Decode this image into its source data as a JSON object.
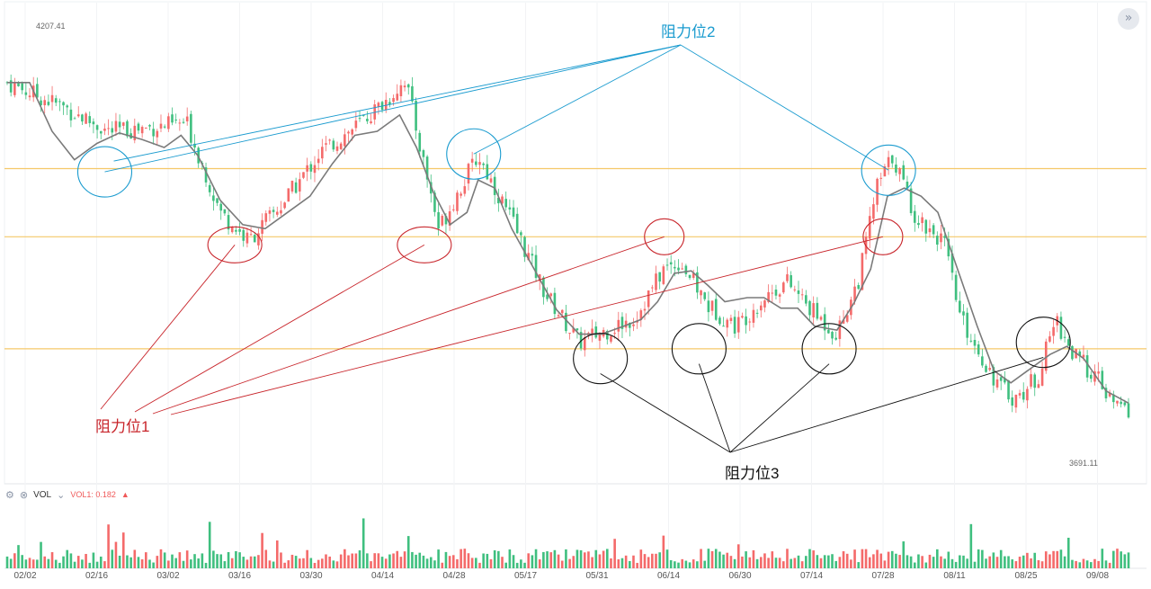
{
  "header": {
    "expand_icon": "chevrons-right-icon"
  },
  "price_labels": {
    "high": "4207.41",
    "low": "3691.11"
  },
  "volume_panel": {
    "settings_icon": "gear-icon",
    "close_icon": "close-icon",
    "title": "VOL",
    "dropdown_icon": "chevron-down-icon",
    "indicator": "VOL1: 0.182",
    "trend_icon": "triangle-up-icon"
  },
  "annotations": {
    "label1": "阻力位1",
    "label2": "阻力位2",
    "label3": "阻力位3"
  },
  "colors": {
    "up": "#f46a6a",
    "down": "#3fbf7f",
    "ma": "#7a7a7a",
    "level": "#f5c869",
    "r1": "#c8252b",
    "r2": "#1a9bcf",
    "r3": "#111111"
  },
  "chart_data": {
    "type": "candlestick",
    "ylim": [
      3691.11,
      4207.41
    ],
    "x_tick_labels": [
      "02/02",
      "02/16",
      "03/02",
      "03/16",
      "03/30",
      "04/14",
      "04/28",
      "05/17",
      "05/31",
      "06/14",
      "06/30",
      "07/14",
      "07/28",
      "08/11",
      "08/25",
      "09/08"
    ],
    "high_label": "4207.41",
    "low_label": "3691.11",
    "horizontal_levels": [
      4044,
      3960,
      3822
    ],
    "close_path": [
      [
        0,
        4150
      ],
      [
        0.05,
        4120
      ],
      [
        0.09,
        4090
      ],
      [
        0.13,
        4095
      ],
      [
        0.16,
        4100
      ],
      [
        0.19,
        3990
      ],
      [
        0.215,
        3955
      ],
      [
        0.245,
        4000
      ],
      [
        0.28,
        4065
      ],
      [
        0.31,
        4095
      ],
      [
        0.34,
        4130
      ],
      [
        0.355,
        4155
      ],
      [
        0.37,
        4060
      ],
      [
        0.385,
        3970
      ],
      [
        0.4,
        4010
      ],
      [
        0.42,
        4060
      ],
      [
        0.45,
        3980
      ],
      [
        0.48,
        3890
      ],
      [
        0.51,
        3830
      ],
      [
        0.535,
        3845
      ],
      [
        0.56,
        3860
      ],
      [
        0.585,
        3920
      ],
      [
        0.6,
        3930
      ],
      [
        0.625,
        3875
      ],
      [
        0.65,
        3850
      ],
      [
        0.675,
        3885
      ],
      [
        0.695,
        3905
      ],
      [
        0.72,
        3865
      ],
      [
        0.74,
        3840
      ],
      [
        0.76,
        3910
      ],
      [
        0.775,
        4020
      ],
      [
        0.79,
        4060
      ],
      [
        0.81,
        3985
      ],
      [
        0.835,
        3955
      ],
      [
        0.85,
        3860
      ],
      [
        0.87,
        3810
      ],
      [
        0.885,
        3775
      ],
      [
        0.9,
        3760
      ],
      [
        0.92,
        3790
      ],
      [
        0.935,
        3860
      ],
      [
        0.95,
        3815
      ],
      [
        0.97,
        3790
      ],
      [
        0.985,
        3755
      ],
      [
        1,
        3745
      ]
    ],
    "ma_path": [
      [
        0,
        4150
      ],
      [
        0.02,
        4150
      ],
      [
        0.04,
        4090
      ],
      [
        0.06,
        4055
      ],
      [
        0.08,
        4075
      ],
      [
        0.1,
        4088
      ],
      [
        0.12,
        4080
      ],
      [
        0.14,
        4070
      ],
      [
        0.155,
        4085
      ],
      [
        0.17,
        4060
      ],
      [
        0.19,
        4005
      ],
      [
        0.21,
        3975
      ],
      [
        0.23,
        3970
      ],
      [
        0.25,
        3990
      ],
      [
        0.27,
        4010
      ],
      [
        0.29,
        4050
      ],
      [
        0.31,
        4085
      ],
      [
        0.33,
        4090
      ],
      [
        0.35,
        4110
      ],
      [
        0.365,
        4070
      ],
      [
        0.38,
        4015
      ],
      [
        0.395,
        3975
      ],
      [
        0.41,
        3990
      ],
      [
        0.42,
        4030
      ],
      [
        0.435,
        4020
      ],
      [
        0.45,
        3970
      ],
      [
        0.47,
        3920
      ],
      [
        0.49,
        3870
      ],
      [
        0.51,
        3840
      ],
      [
        0.53,
        3840
      ],
      [
        0.55,
        3850
      ],
      [
        0.565,
        3858
      ],
      [
        0.58,
        3880
      ],
      [
        0.595,
        3915
      ],
      [
        0.61,
        3918
      ],
      [
        0.625,
        3900
      ],
      [
        0.64,
        3880
      ],
      [
        0.66,
        3885
      ],
      [
        0.675,
        3885
      ],
      [
        0.69,
        3872
      ],
      [
        0.705,
        3872
      ],
      [
        0.72,
        3850
      ],
      [
        0.74,
        3845
      ],
      [
        0.755,
        3878
      ],
      [
        0.77,
        3920
      ],
      [
        0.785,
        4010
      ],
      [
        0.8,
        4020
      ],
      [
        0.815,
        4010
      ],
      [
        0.83,
        3990
      ],
      [
        0.85,
        3910
      ],
      [
        0.865,
        3850
      ],
      [
        0.88,
        3795
      ],
      [
        0.895,
        3780
      ],
      [
        0.91,
        3795
      ],
      [
        0.93,
        3815
      ],
      [
        0.945,
        3825
      ],
      [
        0.96,
        3810
      ],
      [
        0.98,
        3770
      ],
      [
        1,
        3755
      ]
    ],
    "resistance_circles": [
      {
        "x": 0.087,
        "y": 4040,
        "group": "r2"
      },
      {
        "x": 0.203,
        "y": 3950,
        "group": "r1"
      },
      {
        "x": 0.372,
        "y": 3950,
        "group": "r1"
      },
      {
        "x": 0.416,
        "y": 4062,
        "group": "r2"
      },
      {
        "x": 0.529,
        "y": 3810,
        "group": "r3"
      },
      {
        "x": 0.586,
        "y": 3960,
        "group": "r1"
      },
      {
        "x": 0.617,
        "y": 3822,
        "group": "r3"
      },
      {
        "x": 0.733,
        "y": 3822,
        "group": "r3"
      },
      {
        "x": 0.786,
        "y": 4042,
        "group": "r2"
      },
      {
        "x": 0.781,
        "y": 3960,
        "group": "r1"
      },
      {
        "x": 0.924,
        "y": 3830,
        "group": "r3"
      }
    ]
  }
}
